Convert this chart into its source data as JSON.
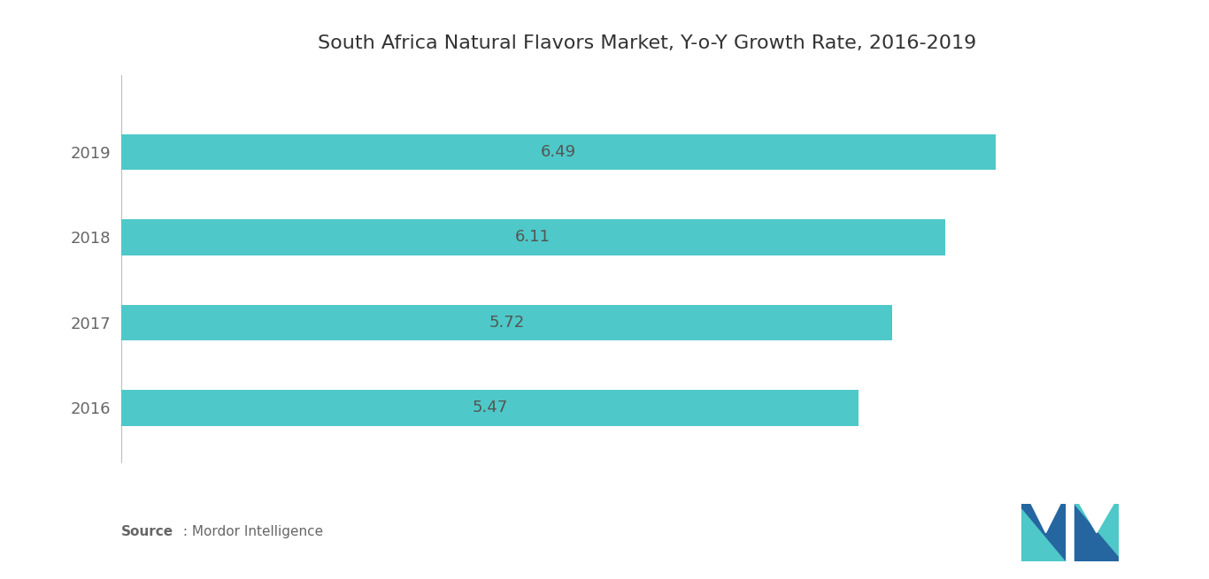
{
  "title": "South Africa Natural Flavors Market, Y-o-Y Growth Rate, 2016-2019",
  "years": [
    "2016",
    "2017",
    "2018",
    "2019"
  ],
  "values": [
    5.47,
    5.72,
    6.11,
    6.49
  ],
  "bar_color": "#4ec8c8",
  "bar_height": 0.42,
  "label_color": "#666666",
  "value_color": "#555555",
  "title_color": "#333333",
  "background_color": "#ffffff",
  "xlim": [
    0,
    7.8
  ],
  "ylim": [
    -0.65,
    3.9
  ],
  "title_fontsize": 16,
  "label_fontsize": 13,
  "value_fontsize": 13,
  "logo_color_dark": "#2566a0",
  "logo_color_teal": "#4ec8c8",
  "logo_color_light": "#5ad0d0"
}
